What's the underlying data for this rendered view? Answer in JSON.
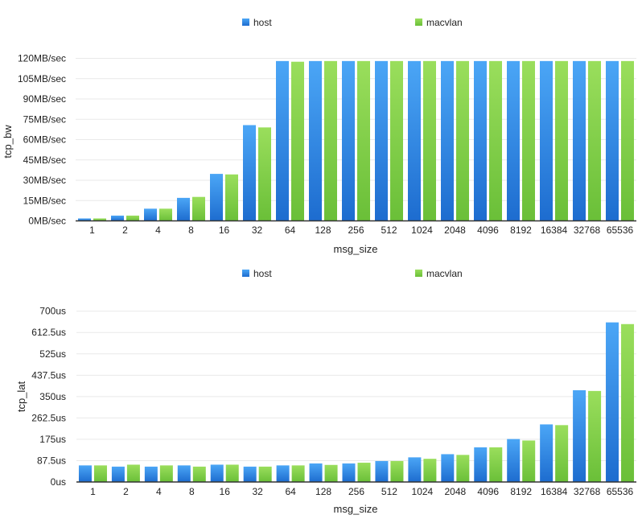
{
  "chart_data": [
    {
      "type": "bar",
      "title": "",
      "xlabel": "msg_size",
      "ylabel": "tcp_bw",
      "unit_suffix": "MB/sec",
      "ylim": [
        0,
        120
      ],
      "yticks": [
        0,
        15,
        30,
        45,
        60,
        75,
        90,
        105,
        120
      ],
      "ytick_labels": [
        "0MB/sec",
        "15MB/sec",
        "30MB/sec",
        "45MB/sec",
        "60MB/sec",
        "75MB/sec",
        "90MB/sec",
        "105MB/sec",
        "120MB/sec"
      ],
      "grid": true,
      "legend_position": "top-center",
      "categories": [
        "1",
        "2",
        "4",
        "8",
        "16",
        "32",
        "64",
        "128",
        "256",
        "512",
        "1024",
        "2048",
        "4096",
        "8192",
        "16384",
        "32768",
        "65536"
      ],
      "series": [
        {
          "name": "host",
          "color": "#2f86e6",
          "values": [
            1.8,
            3.9,
            9.0,
            17.0,
            34.7,
            70.7,
            118,
            118,
            118,
            118,
            118,
            118,
            118,
            118,
            118,
            118,
            118
          ]
        },
        {
          "name": "macvlan",
          "color": "#7fcf45",
          "values": [
            1.8,
            3.9,
            9.0,
            17.7,
            34.3,
            69.0,
            117.5,
            118,
            118,
            118,
            118,
            118,
            118,
            118,
            118,
            118,
            118
          ]
        }
      ]
    },
    {
      "type": "bar",
      "title": "",
      "xlabel": "msg_size",
      "ylabel": "tcp_lat",
      "unit_suffix": "us",
      "ylim": [
        0,
        700
      ],
      "yticks": [
        0,
        87.5,
        175,
        262.5,
        350,
        437.5,
        525,
        612.5,
        700
      ],
      "ytick_labels": [
        "0us",
        "87.5us",
        "175us",
        "262.5us",
        "350us",
        "437.5us",
        "525us",
        "612.5us",
        "700us"
      ],
      "grid": true,
      "legend_position": "top-center",
      "categories": [
        "1",
        "2",
        "4",
        "8",
        "16",
        "32",
        "64",
        "128",
        "256",
        "512",
        "1024",
        "2048",
        "4096",
        "8192",
        "16384",
        "32768",
        "65536"
      ],
      "series": [
        {
          "name": "host",
          "color": "#2f86e6",
          "values": [
            68,
            63,
            63,
            68,
            71,
            63,
            68,
            76,
            76,
            86,
            101,
            114,
            142,
            176,
            236,
            376,
            654
          ]
        },
        {
          "name": "macvlan",
          "color": "#7fcf45",
          "values": [
            68,
            71,
            68,
            63,
            71,
            63,
            68,
            70,
            79,
            86,
            95,
            111,
            142,
            170,
            233,
            373,
            647
          ]
        }
      ]
    }
  ]
}
